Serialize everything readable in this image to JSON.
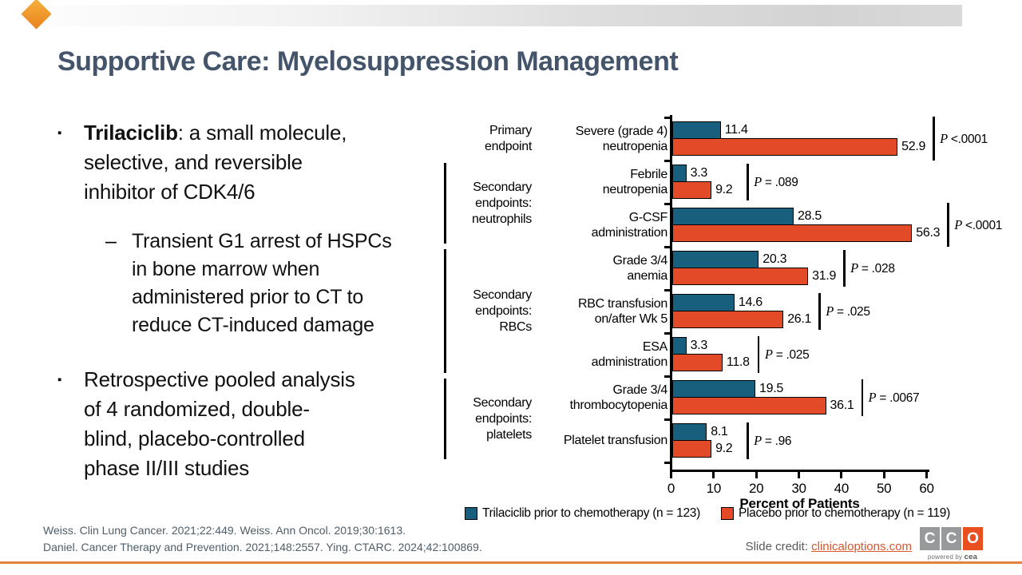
{
  "slide": {
    "title": "Supportive Care: Myelosuppression Management"
  },
  "content": {
    "bullet_marker": "▪",
    "sub_bullet_marker": "–",
    "bullet1_bold": "Trilaciclib",
    "bullet1_rest": ": a small molecule,\nselective, and reversible\ninhibitor of CDK4/6",
    "sub_bullet": "Transient G1 arrest of HSPCs\nin bone marrow when\nadministered prior to CT to\nreduce CT-induced damage",
    "bullet2": "Retrospective pooled analysis\nof 4 randomized, double-\nblind, placebo-controlled\nphase II/III studies"
  },
  "chart_data": {
    "type": "bar",
    "orientation": "horizontal",
    "xlabel": "Percent of Patients",
    "xlim": [
      0,
      60
    ],
    "xticks": [
      0,
      10,
      20,
      30,
      40,
      50,
      60
    ],
    "grid": false,
    "legend_position": "bottom",
    "p_label": "P",
    "series": [
      {
        "name": "Trilaciclib prior to chemotherapy (n = 123)",
        "color": "#185f7d"
      },
      {
        "name": "Placebo prior to chemotherapy (n = 119)",
        "color": "#e24a28"
      }
    ],
    "groups": [
      {
        "label": [
          "Primary",
          "endpoint"
        ],
        "bracket": false,
        "rows": [
          0
        ]
      },
      {
        "label": [
          "Secondary",
          "endpoints:",
          "neutrophils"
        ],
        "bracket": true,
        "rows": [
          1,
          2
        ]
      },
      {
        "label": [
          "Secondary",
          "endpoints:",
          "RBCs"
        ],
        "bracket": true,
        "rows": [
          3,
          4,
          5
        ]
      },
      {
        "label": [
          "Secondary",
          "endpoints:",
          "platelets"
        ],
        "bracket": true,
        "rows": [
          6,
          7
        ]
      }
    ],
    "categories": [
      {
        "label": [
          "Severe (grade 4)",
          "neutropenia"
        ],
        "trilaciclib": 11.4,
        "placebo": 52.9,
        "p": "<.0001"
      },
      {
        "label": [
          "Febrile",
          "neutropenia"
        ],
        "trilaciclib": 3.3,
        "placebo": 9.2,
        "p": "= .089"
      },
      {
        "label": [
          "G-CSF",
          "administration"
        ],
        "trilaciclib": 28.5,
        "placebo": 56.3,
        "p": "<.0001"
      },
      {
        "label": [
          "Grade 3/4",
          "anemia"
        ],
        "trilaciclib": 20.3,
        "placebo": 31.9,
        "p": "= .028"
      },
      {
        "label": [
          "RBC transfusion",
          "on/after Wk 5"
        ],
        "trilaciclib": 14.6,
        "placebo": 26.1,
        "p": "= .025"
      },
      {
        "label": [
          "ESA",
          "administration"
        ],
        "trilaciclib": 3.3,
        "placebo": 11.8,
        "p": "= .025"
      },
      {
        "label": [
          "Grade 3/4",
          "thrombocytopenia"
        ],
        "trilaciclib": 19.5,
        "placebo": 36.1,
        "p": "= .0067"
      },
      {
        "label": [
          "Platelet transfusion"
        ],
        "trilaciclib": 8.1,
        "placebo": 9.2,
        "p": "= .96"
      }
    ]
  },
  "footer": {
    "references_line1": "Weiss. Clin Lung Cancer. 2021;22:449. Weiss. Ann Oncol. 2019;30:1613.",
    "references_line2": "Daniel. Cancer Therapy and Prevention. 2021;148:2557. Ying. CTARC. 2024;42:100869.",
    "credit_label": "Slide credit: ",
    "credit_link": "clinicaloptions.com",
    "logo_letters": [
      "C",
      "C",
      "O"
    ],
    "logo_tagline_prefix": "powered by ",
    "logo_tagline_brand": "cea"
  },
  "colors": {
    "title": "#44546a",
    "trilaciclib_bar": "#185f7d",
    "placebo_bar": "#e24a28",
    "credit_link": "#d8572b",
    "bottom_divider": "#df8243"
  }
}
